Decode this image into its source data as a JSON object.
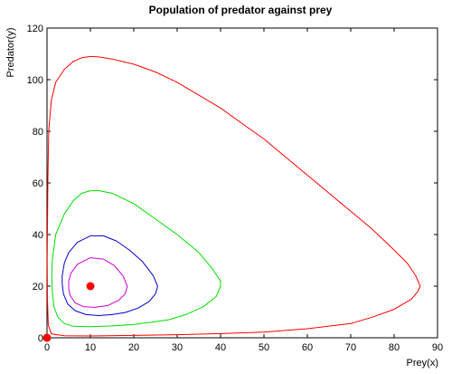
{
  "chart_data": {
    "type": "line",
    "title": "Population of predator against prey",
    "xlabel": "Prey(x)",
    "ylabel": "Predator(y)",
    "xlim": [
      0,
      90
    ],
    "ylim": [
      0,
      120
    ],
    "xticks": [
      0,
      10,
      20,
      30,
      40,
      50,
      60,
      70,
      80,
      90
    ],
    "yticks": [
      0,
      20,
      40,
      60,
      80,
      100,
      120
    ],
    "grid": false,
    "series": [
      {
        "color": "#ff0000",
        "points": [
          [
            0.2,
            62
          ],
          [
            0.4,
            80
          ],
          [
            1,
            92
          ],
          [
            2,
            99
          ],
          [
            4,
            104
          ],
          [
            6,
            107
          ],
          [
            8,
            108.5
          ],
          [
            10,
            109
          ],
          [
            12,
            108.8
          ],
          [
            15,
            108
          ],
          [
            20,
            106
          ],
          [
            25,
            103
          ],
          [
            30,
            99
          ],
          [
            35,
            94
          ],
          [
            40,
            89
          ],
          [
            45,
            83
          ],
          [
            50,
            77
          ],
          [
            55,
            70
          ],
          [
            60,
            63
          ],
          [
            65,
            56
          ],
          [
            70,
            49
          ],
          [
            75,
            42
          ],
          [
            80,
            34
          ],
          [
            83,
            29
          ],
          [
            85,
            24
          ],
          [
            86,
            20
          ],
          [
            85.5,
            18
          ],
          [
            84,
            15
          ],
          [
            80,
            11
          ],
          [
            75,
            8
          ],
          [
            70,
            5.5
          ],
          [
            60,
            3.5
          ],
          [
            50,
            2.2
          ],
          [
            40,
            1.6
          ],
          [
            30,
            1.2
          ],
          [
            20,
            0.9
          ],
          [
            10,
            0.7
          ],
          [
            4,
            0.8
          ],
          [
            1,
            1.5
          ],
          [
            0.3,
            5
          ],
          [
            0.1,
            15
          ],
          [
            0.05,
            30
          ],
          [
            0.2,
            62
          ]
        ]
      },
      {
        "color": "#00dd00",
        "points": [
          [
            1.2,
            30
          ],
          [
            2,
            40
          ],
          [
            4,
            48
          ],
          [
            6,
            53
          ],
          [
            8,
            56
          ],
          [
            10,
            57
          ],
          [
            12,
            57
          ],
          [
            15,
            56
          ],
          [
            20,
            52
          ],
          [
            25,
            46
          ],
          [
            30,
            40
          ],
          [
            35,
            33
          ],
          [
            38,
            27
          ],
          [
            40,
            22
          ],
          [
            40,
            20
          ],
          [
            39,
            16
          ],
          [
            36,
            12
          ],
          [
            32,
            9
          ],
          [
            28,
            7
          ],
          [
            24,
            6
          ],
          [
            20,
            5.2
          ],
          [
            15,
            4.6
          ],
          [
            10,
            4.3
          ],
          [
            6,
            4.5
          ],
          [
            4,
            5.5
          ],
          [
            2.5,
            8
          ],
          [
            1.6,
            12
          ],
          [
            1.2,
            18
          ],
          [
            1.1,
            24
          ],
          [
            1.2,
            30
          ]
        ]
      },
      {
        "color": "#0000cc",
        "points": [
          [
            3.5,
            24
          ],
          [
            4,
            29
          ],
          [
            5,
            33
          ],
          [
            7,
            37
          ],
          [
            10,
            39.5
          ],
          [
            13,
            39.5
          ],
          [
            16,
            37.5
          ],
          [
            19,
            34
          ],
          [
            22,
            29.5
          ],
          [
            24.5,
            24
          ],
          [
            25.5,
            20
          ],
          [
            25,
            17
          ],
          [
            23.5,
            14
          ],
          [
            21,
            11.5
          ],
          [
            18,
            9.8
          ],
          [
            15,
            9
          ],
          [
            12,
            8.6
          ],
          [
            9,
            9
          ],
          [
            6.5,
            10.5
          ],
          [
            4.8,
            13
          ],
          [
            3.8,
            17
          ],
          [
            3.5,
            21
          ],
          [
            3.5,
            24
          ]
        ]
      },
      {
        "color": "#cc00cc",
        "points": [
          [
            5,
            22
          ],
          [
            5.5,
            25
          ],
          [
            7,
            28.5
          ],
          [
            10,
            31
          ],
          [
            13,
            30.5
          ],
          [
            15.5,
            28
          ],
          [
            17.5,
            24
          ],
          [
            18.5,
            20
          ],
          [
            18,
            17
          ],
          [
            16.5,
            14.5
          ],
          [
            14,
            12.5
          ],
          [
            11,
            11.8
          ],
          [
            8.5,
            12
          ],
          [
            6.5,
            13.5
          ],
          [
            5.3,
            16.5
          ],
          [
            5,
            19
          ],
          [
            5,
            22
          ]
        ]
      }
    ],
    "markers": [
      {
        "x": 10,
        "y": 20,
        "color": "#ff0000"
      },
      {
        "x": 0,
        "y": 0,
        "color": "#ff0000"
      }
    ]
  }
}
